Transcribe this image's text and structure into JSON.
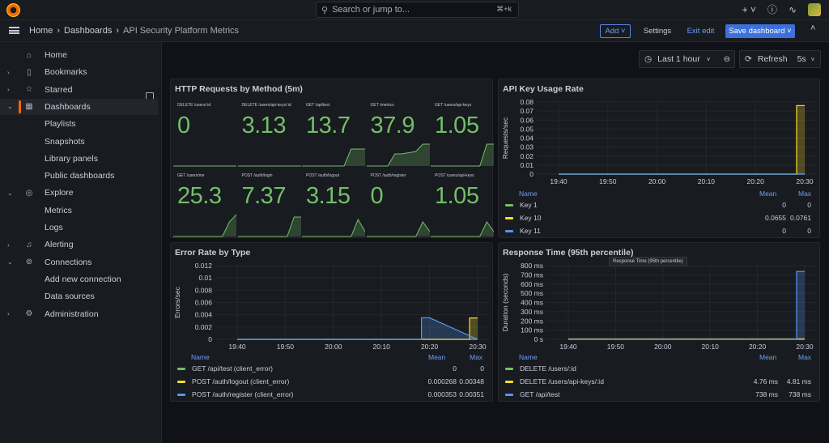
{
  "topbar": {
    "search_placeholder": "Search or jump to...",
    "search_shortcut": "⌘+k",
    "plus_label": "+",
    "help_icon": "help-circle-icon",
    "news_icon": "rss-icon"
  },
  "breadcrumb": {
    "home": "Home",
    "dashboards": "Dashboards",
    "current": "API Security Platform Metrics"
  },
  "toolbar": {
    "add": "Add",
    "settings": "Settings",
    "exit_edit": "Exit edit",
    "save": "Save dashboard",
    "time_range": "Last 1 hour",
    "refresh": "Refresh",
    "refresh_interval": "5s"
  },
  "sidebar": {
    "items": [
      {
        "label": "Home",
        "icon": "home-icon",
        "level": 0
      },
      {
        "label": "Bookmarks",
        "icon": "bookmark-icon",
        "level": 0
      },
      {
        "label": "Starred",
        "icon": "star-icon",
        "level": 0
      },
      {
        "label": "Dashboards",
        "icon": "apps-icon",
        "level": 0
      },
      {
        "label": "Playlists",
        "level": 1
      },
      {
        "label": "Snapshots",
        "level": 1
      },
      {
        "label": "Library panels",
        "level": 1
      },
      {
        "label": "Public dashboards",
        "level": 1
      },
      {
        "label": "Explore",
        "icon": "compass-icon",
        "level": 0
      },
      {
        "label": "Metrics",
        "level": 1
      },
      {
        "label": "Logs",
        "level": 1
      },
      {
        "label": "Alerting",
        "icon": "bell-icon",
        "level": 0
      },
      {
        "label": "Connections",
        "icon": "plug-icon",
        "level": 0
      },
      {
        "label": "Add new connection",
        "level": 1
      },
      {
        "label": "Data sources",
        "level": 1
      },
      {
        "label": "Administration",
        "icon": "cog-icon",
        "level": 0
      }
    ]
  },
  "panels": {
    "http_requests": {
      "title": "HTTP Requests by Method (5m)",
      "stats": [
        {
          "label": "DELETE /users/:id",
          "value": "0",
          "spark": [
            0,
            0,
            0,
            0,
            0,
            0,
            0,
            0,
            0,
            0
          ]
        },
        {
          "label": "DELETE /users/api-keys/:id",
          "value": "3.13",
          "spark": [
            0,
            0,
            0,
            0,
            0,
            0,
            0,
            0,
            0,
            0
          ]
        },
        {
          "label": "GET /api/test",
          "value": "13.7",
          "spark": [
            0,
            0,
            0,
            0,
            0,
            0,
            0,
            0.7,
            0.7,
            0.7
          ]
        },
        {
          "label": "GET /metrics",
          "value": "37.9",
          "spark": [
            0,
            0,
            0,
            0,
            0.5,
            0.5,
            0.55,
            0.6,
            0.9,
            0.9
          ]
        },
        {
          "label": "GET /users/api-keys",
          "value": "1.05",
          "spark": [
            0,
            0,
            0,
            0,
            0,
            0,
            0,
            0,
            0.9,
            0.9
          ]
        },
        {
          "label": "GET /users/me",
          "value": "25.3",
          "spark": [
            0,
            0,
            0,
            0,
            0,
            0,
            0,
            0,
            0.6,
            0.9
          ]
        },
        {
          "label": "POST /auth/login",
          "value": "7.37",
          "spark": [
            0,
            0,
            0,
            0,
            0,
            0,
            0,
            0,
            0.8,
            0.8
          ]
        },
        {
          "label": "POST /auth/logout",
          "value": "3.15",
          "spark": [
            0,
            0,
            0,
            0,
            0,
            0,
            0,
            0,
            0.7,
            0.2
          ]
        },
        {
          "label": "POST /auth/register",
          "value": "0",
          "spark": [
            0,
            0,
            0,
            0,
            0,
            0,
            0,
            0,
            0.6,
            0.2
          ]
        },
        {
          "label": "POST /users/api-keys",
          "value": "1.05",
          "spark": [
            0,
            0,
            0,
            0,
            0,
            0,
            0,
            0,
            0.6,
            0.2
          ]
        }
      ]
    },
    "api_key_usage": {
      "title": "API Key Usage Rate",
      "ylabel": "Requests/sec",
      "legend_headers": {
        "name": "Name",
        "mean": "Mean",
        "max": "Max"
      },
      "legend": [
        {
          "name": "Key 1",
          "color": "#73bf69",
          "mean": "0",
          "max": "0"
        },
        {
          "name": "Key 10",
          "color": "#fade2a",
          "mean": "0.0655",
          "max": "0.0761"
        },
        {
          "name": "Key 11",
          "color": "#5794f2",
          "mean": "0",
          "max": "0"
        }
      ]
    },
    "error_rate": {
      "title": "Error Rate by Type",
      "ylabel": "Errors/sec",
      "legend_headers": {
        "name": "Name",
        "mean": "Mean",
        "max": "Max"
      },
      "legend": [
        {
          "name": "GET /api/test (client_error)",
          "color": "#73bf69",
          "mean": "0",
          "max": "0"
        },
        {
          "name": "POST /auth/logout (client_error)",
          "color": "#fade2a",
          "mean": "0.000268",
          "max": "0.00348"
        },
        {
          "name": "POST /auth/register (client_error)",
          "color": "#5794f2",
          "mean": "0.000353",
          "max": "0.00351"
        }
      ]
    },
    "response_time": {
      "title": "Response Time (95th percentile)",
      "ylabel": "Duration (seconds)",
      "tooltip": "Response Time (95th percentile)",
      "legend_headers": {
        "name": "Name",
        "mean": "Mean",
        "max": "Max"
      },
      "legend": [
        {
          "name": "DELETE /users/:id",
          "color": "#73bf69",
          "mean": "",
          "max": ""
        },
        {
          "name": "DELETE /users/api-keys/:id",
          "color": "#fade2a",
          "mean": "4.76 ms",
          "max": "4.81 ms"
        },
        {
          "name": "GET /api/test",
          "color": "#5794f2",
          "mean": "738 ms",
          "max": "738 ms"
        }
      ]
    }
  },
  "chart_data": [
    {
      "type": "line",
      "title": "API Key Usage Rate",
      "ylabel": "Requests/sec",
      "x": [
        "19:40",
        "19:50",
        "20:00",
        "20:10",
        "20:20",
        "20:30"
      ],
      "yticks": [
        "0.08",
        "0.07",
        "0.06",
        "0.05",
        "0.04",
        "0.03",
        "0.02",
        "0.01",
        "0"
      ],
      "ylim": [
        0,
        0.08
      ],
      "series": [
        {
          "name": "Key 1",
          "values": [
            0,
            0,
            0,
            0,
            0,
            0
          ]
        },
        {
          "name": "Key 10",
          "values": [
            0,
            0,
            0,
            0,
            0,
            0.0761
          ]
        },
        {
          "name": "Key 11",
          "values": [
            0,
            0,
            0,
            0,
            0,
            0
          ]
        }
      ]
    },
    {
      "type": "line",
      "title": "Error Rate by Type",
      "ylabel": "Errors/sec",
      "x": [
        "19:40",
        "19:50",
        "20:00",
        "20:10",
        "20:20",
        "20:30"
      ],
      "yticks": [
        "0.012",
        "0.01",
        "0.008",
        "0.006",
        "0.004",
        "0.002",
        "0"
      ],
      "ylim": [
        0,
        0.012
      ],
      "series": [
        {
          "name": "GET /api/test (client_error)",
          "values": [
            0,
            0,
            0,
            0,
            0,
            0
          ]
        },
        {
          "name": "POST /auth/logout (client_error)",
          "values": [
            0,
            0,
            0,
            0,
            0,
            0.00348
          ]
        },
        {
          "name": "POST /auth/register (client_error)",
          "values": [
            0,
            0,
            0,
            0,
            0.00351,
            0
          ]
        }
      ]
    },
    {
      "type": "line",
      "title": "Response Time (95th percentile)",
      "ylabel": "Duration (seconds)",
      "x": [
        "19:40",
        "19:50",
        "20:00",
        "20:10",
        "20:20",
        "20:30"
      ],
      "yticks": [
        "800 ms",
        "700 ms",
        "600 ms",
        "500 ms",
        "400 ms",
        "300 ms",
        "200 ms",
        "100 ms",
        "0 s"
      ],
      "ylim": [
        0,
        800
      ],
      "series": [
        {
          "name": "DELETE /users/:id",
          "values": [
            0,
            0,
            0,
            0,
            0,
            0
          ]
        },
        {
          "name": "DELETE /users/api-keys/:id",
          "values": [
            4.76,
            4.76,
            4.76,
            4.76,
            4.76,
            4.81
          ]
        },
        {
          "name": "GET /api/test",
          "values": [
            0,
            0,
            0,
            0,
            0,
            738
          ]
        }
      ]
    }
  ]
}
